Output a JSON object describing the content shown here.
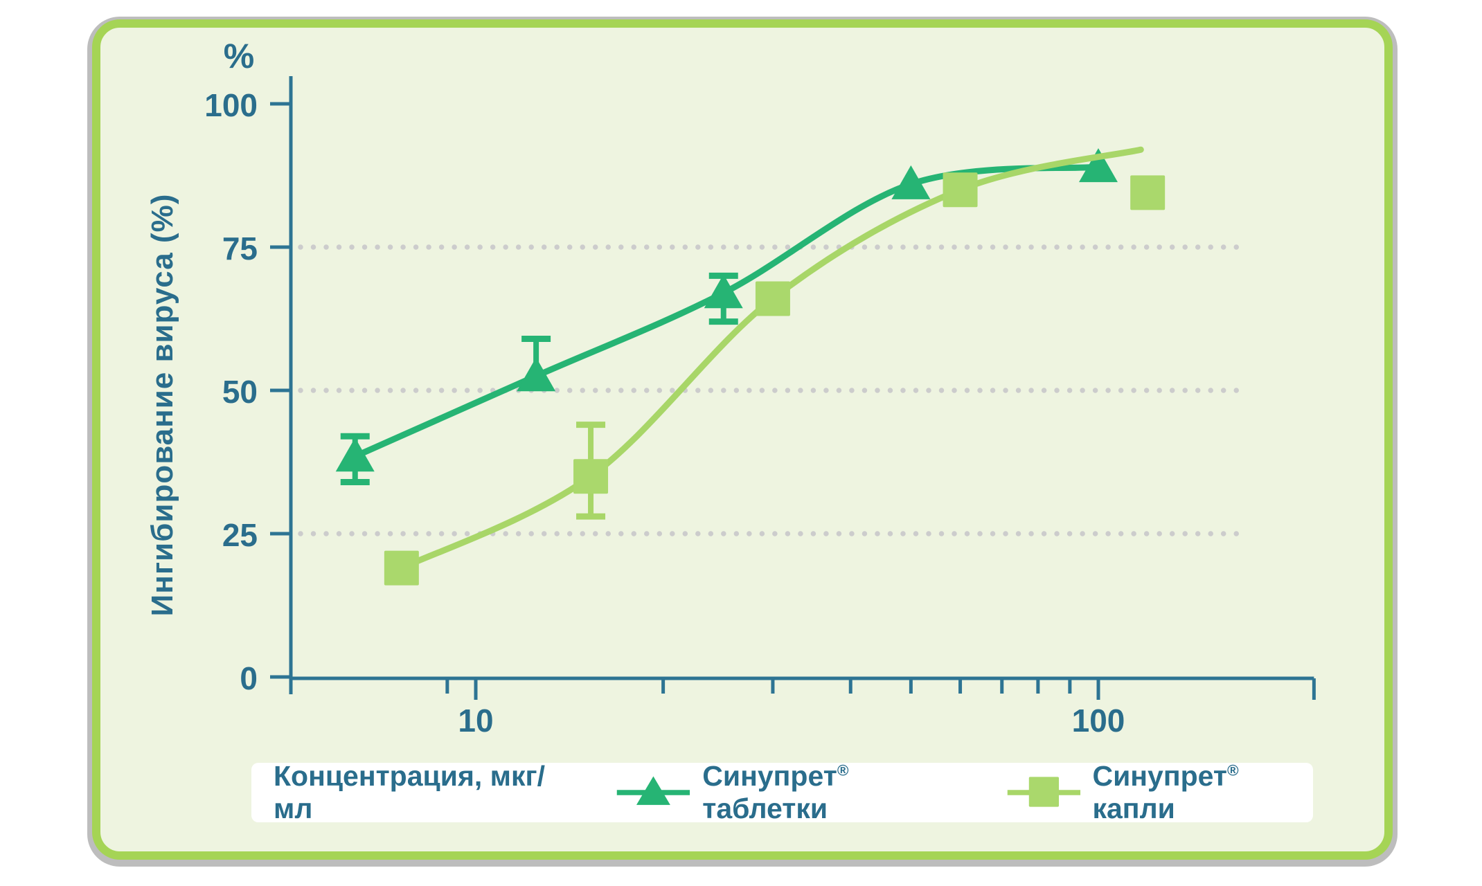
{
  "palette": {
    "accent_text": "#2a6d8c",
    "axis_stroke": "#2d7493",
    "grid_dots": "#cccccc",
    "frame_green": "#a5d455",
    "panel_bg": "#eef4e0",
    "legend_bg": "#ffffff",
    "shadow_gray": "#bdbdbd"
  },
  "chart_data": {
    "type": "line",
    "title": "",
    "xlabel": "Концентрация, мкг/мл",
    "ylabel": "Ингибирование вируса (%)",
    "y_unit_label": "%",
    "x_scale": "log",
    "x_range": [
      5.05,
      222
    ],
    "y_range": [
      0,
      100
    ],
    "x_ticks_major": [
      10,
      100
    ],
    "x_tick_labels": [
      "10",
      "100"
    ],
    "x_ticks_minor": [
      9,
      20,
      30,
      40,
      50,
      60,
      70,
      80,
      90
    ],
    "y_ticks": [
      0,
      25,
      50,
      75,
      100
    ],
    "y_tick_labels": [
      "0",
      "25",
      "50",
      "75",
      "100"
    ],
    "gridlines_y": [
      25,
      50,
      75
    ],
    "grid_style": "dotted",
    "legend_position": "bottom",
    "series": [
      {
        "name": "Синупрет® таблетки",
        "marker": "triangle",
        "color": "#26b474",
        "x": [
          6.4,
          12.5,
          25,
          50,
          100
        ],
        "values": [
          38.5,
          52.5,
          67,
          86,
          89
        ],
        "error_hi": [
          42,
          59,
          70,
          null,
          null
        ],
        "error_lo": [
          34,
          null,
          62,
          null,
          null
        ],
        "curve_x": [
          6.4,
          12.5,
          25,
          50,
          100
        ],
        "curve_y": [
          38.5,
          52.5,
          67,
          86,
          89
        ]
      },
      {
        "name": "Синупрет® капли",
        "marker": "square",
        "color": "#a8d668",
        "marker_color": "#aad86c",
        "x": [
          7.6,
          15.3,
          30,
          60,
          120
        ],
        "values": [
          19,
          35,
          66,
          85,
          84.5
        ],
        "error_hi": [
          null,
          44,
          null,
          null,
          null
        ],
        "error_lo": [
          null,
          28,
          null,
          null,
          null
        ],
        "curve_x": [
          7.6,
          15.3,
          30,
          60,
          117
        ],
        "curve_y": [
          19,
          35,
          66,
          85,
          92
        ]
      }
    ],
    "legend": {
      "title": "Концентрация, мкг/мл",
      "items": [
        {
          "pre": "Синупрет",
          "reg": "®",
          "post": "таблетки",
          "marker": "triangle"
        },
        {
          "pre": "Синупрет",
          "reg": "®",
          "post": "капли",
          "marker": "square"
        }
      ]
    }
  }
}
